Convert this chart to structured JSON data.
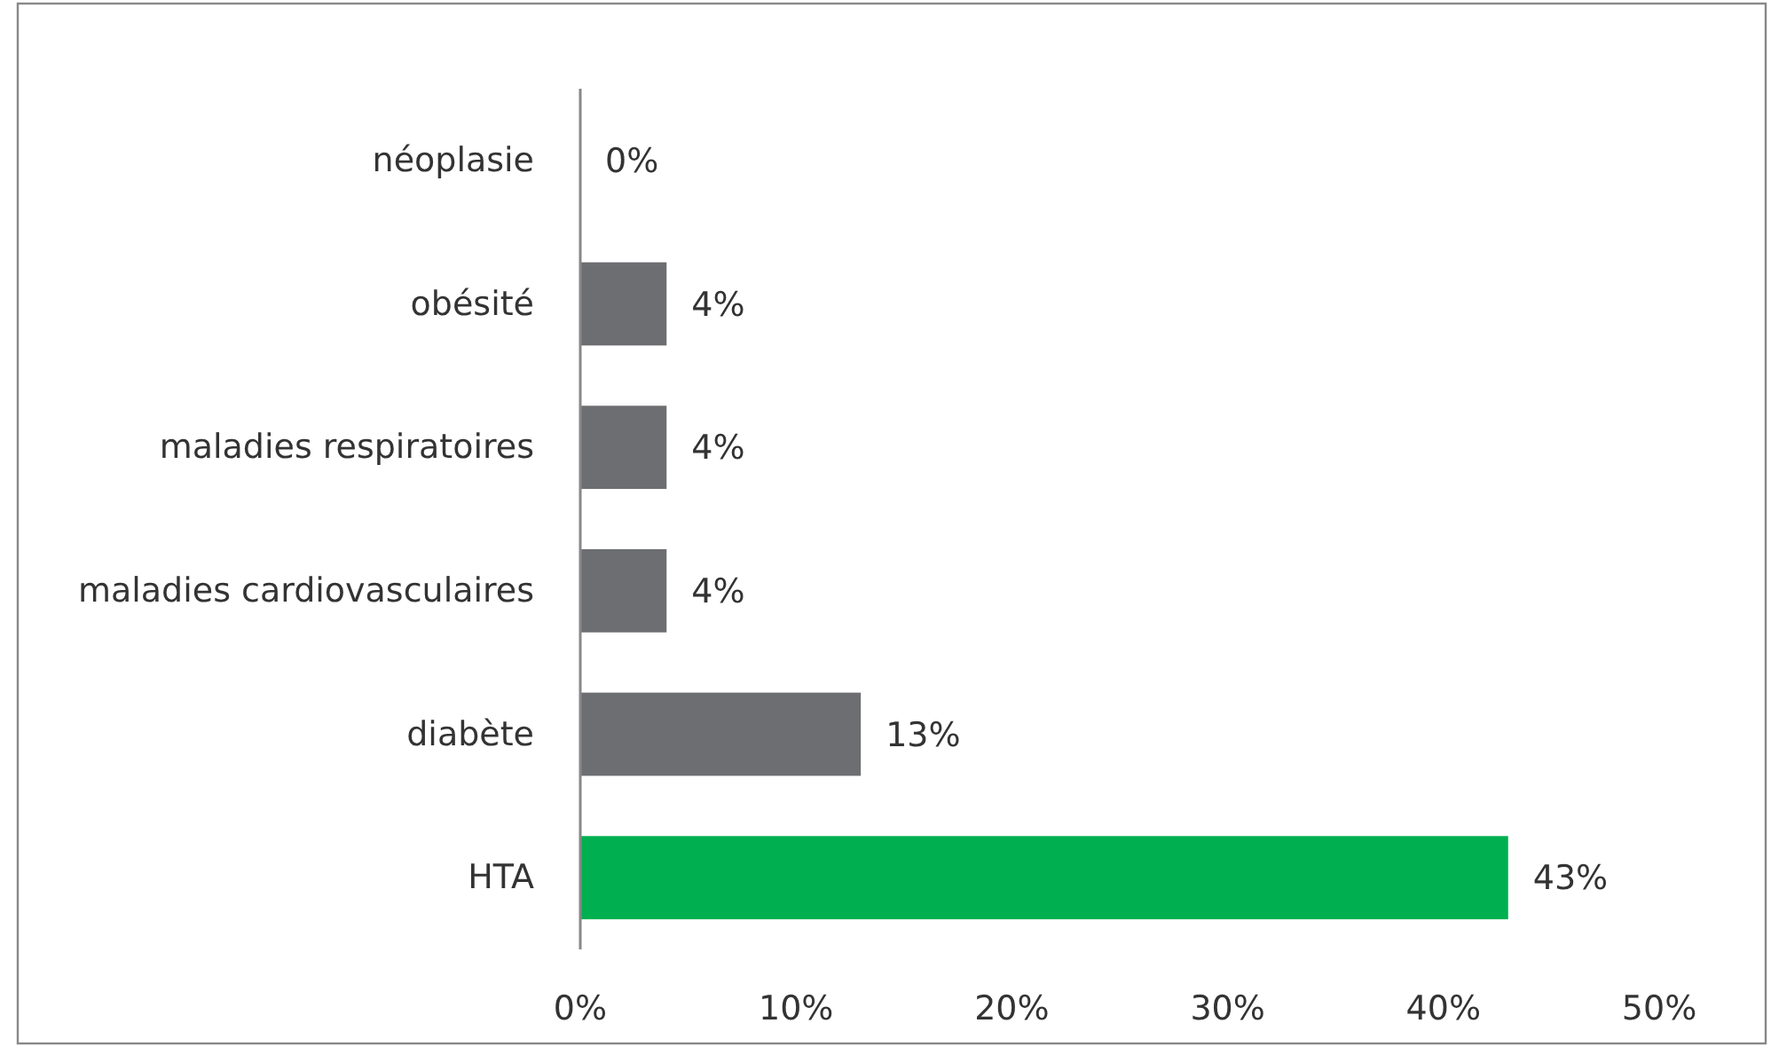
{
  "chart_data": {
    "type": "bar",
    "orientation": "horizontal",
    "categories": [
      "néoplasie",
      "obésité",
      "maladies respiratoires",
      "maladies cardiovasculaires",
      "diabète",
      "HTA"
    ],
    "values": [
      0,
      4,
      4,
      4,
      13,
      43
    ],
    "colors": [
      "#6d6e71",
      "#6d6e71",
      "#6d6e71",
      "#6d6e71",
      "#6d6e71",
      "#00b050"
    ],
    "value_labels": [
      "0%",
      "4%",
      "4%",
      "4%",
      "13%",
      "43%"
    ],
    "xlim": [
      0,
      50
    ],
    "xticks": [
      {
        "value": 0,
        "label": "0%"
      },
      {
        "value": 10,
        "label": "10%"
      },
      {
        "value": 20,
        "label": "20%"
      },
      {
        "value": 30,
        "label": "30%"
      },
      {
        "value": 40,
        "label": "40%"
      },
      {
        "value": 50,
        "label": "50%"
      }
    ],
    "grid": false
  }
}
